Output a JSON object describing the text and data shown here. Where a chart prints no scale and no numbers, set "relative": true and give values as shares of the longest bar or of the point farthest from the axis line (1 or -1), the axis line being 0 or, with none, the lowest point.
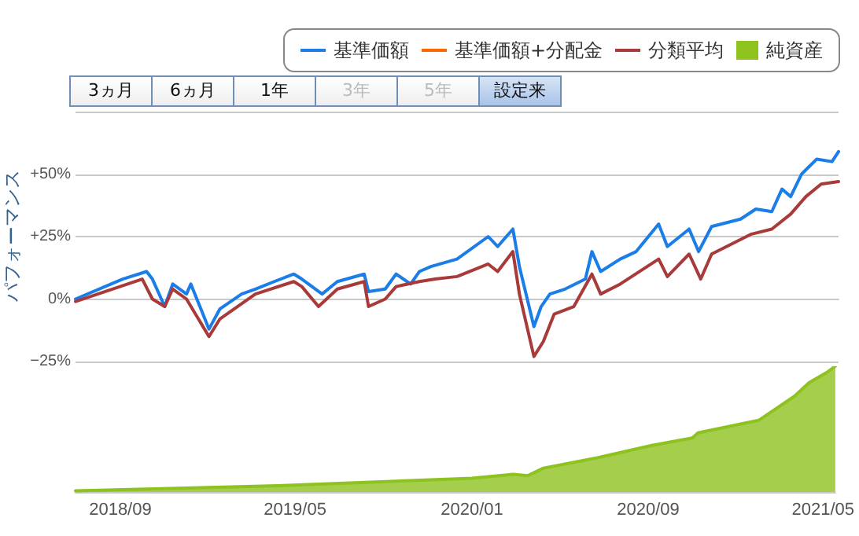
{
  "chart_data": [
    {
      "type": "line",
      "ylabel": "パフォーマンス",
      "legend": "top right",
      "grid": "y",
      "tick_labels": "y",
      "annotations": [
        "3ヵ月",
        "6ヵ月",
        "1年",
        "3年",
        "5年",
        "設定来"
      ],
      "xlim": [
        "2018-07-01",
        "2021-05-18"
      ],
      "ylim": [
        -25,
        75
      ],
      "yticks": [
        {
          "value": -25,
          "label": "−25%"
        },
        {
          "value": 0,
          "label": "0%"
        },
        {
          "value": 25,
          "label": "+25%"
        },
        {
          "value": 50,
          "label": "+50%"
        },
        {
          "value": 75,
          "label": null
        }
      ],
      "series": [
        {
          "name": "基準価額",
          "color": "#1a7de8",
          "x": [
            "2018-07-01",
            "2018-09-04",
            "2018-10-07",
            "2018-10-15",
            "2018-11-01",
            "2018-11-12",
            "2018-12-01",
            "2018-12-07",
            "2019-01-01",
            "2019-01-16",
            "2019-02-15",
            "2019-03-06",
            "2019-04-01",
            "2019-04-28",
            "2019-05-09",
            "2019-06-06",
            "2019-06-27",
            "2019-08-03",
            "2019-08-09",
            "2019-09-01",
            "2019-09-16",
            "2019-10-06",
            "2019-10-18",
            "2019-11-03",
            "2019-12-09",
            "2020-01-21",
            "2020-02-03",
            "2020-02-24",
            "2020-03-04",
            "2020-03-24",
            "2020-04-03",
            "2020-04-15",
            "2020-05-06",
            "2020-06-03",
            "2020-06-12",
            "2020-06-24",
            "2020-07-21",
            "2020-08-12",
            "2020-09-12",
            "2020-09-24",
            "2020-10-24",
            "2020-11-06",
            "2020-11-24",
            "2021-01-03",
            "2021-01-24",
            "2021-02-15",
            "2021-03-01",
            "2021-03-13",
            "2021-03-28",
            "2021-04-18",
            "2021-05-09",
            "2021-05-18"
          ],
          "values": [
            0,
            8,
            11,
            8,
            -3,
            6,
            2,
            6,
            -12,
            -4,
            2,
            4,
            7,
            10,
            8,
            2,
            7,
            10,
            3,
            4,
            10,
            6,
            11,
            13,
            16,
            25,
            21,
            28,
            13,
            -11,
            -3,
            2,
            4,
            8,
            19,
            11,
            16,
            19,
            30,
            21,
            28,
            19,
            29,
            32,
            36,
            35,
            44,
            41,
            50,
            56,
            55,
            59
          ]
        },
        {
          "name": "基準価額+分配金",
          "color": "#ff6600"
        },
        {
          "name": "分類平均",
          "color": "#a83a3a",
          "x": [
            "2018-07-01",
            "2018-10-01",
            "2018-10-15",
            "2018-11-01",
            "2018-11-12",
            "2018-12-01",
            "2019-01-01",
            "2019-01-16",
            "2019-03-06",
            "2019-04-28",
            "2019-05-09",
            "2019-06-01",
            "2019-06-27",
            "2019-08-03",
            "2019-08-09",
            "2019-09-01",
            "2019-09-16",
            "2019-10-18",
            "2019-11-09",
            "2019-12-09",
            "2020-01-21",
            "2020-02-03",
            "2020-02-24",
            "2020-03-04",
            "2020-03-24",
            "2020-04-06",
            "2020-04-21",
            "2020-05-18",
            "2020-06-12",
            "2020-06-24",
            "2020-07-21",
            "2020-09-12",
            "2020-09-24",
            "2020-10-24",
            "2020-11-09",
            "2020-11-24",
            "2021-01-18",
            "2021-02-15",
            "2021-03-13",
            "2021-04-03",
            "2021-04-24",
            "2021-05-18"
          ],
          "values": [
            -1,
            8,
            0,
            -3,
            4,
            0,
            -15,
            -8,
            2,
            7,
            5,
            -3,
            4,
            7,
            -3,
            0,
            5,
            7,
            8,
            9,
            14,
            11,
            19,
            2,
            -23,
            -17,
            -6,
            -3,
            10,
            2,
            6,
            16,
            9,
            18,
            8,
            18,
            26,
            28,
            34,
            41,
            46,
            47
          ]
        }
      ]
    },
    {
      "type": "area",
      "relative": true,
      "legend": "top right",
      "tick_labels": "x",
      "xlim": [
        "2018-07-01",
        "2021-05-18"
      ],
      "xticks": [
        {
          "value": "2018-09",
          "label": "2018/09"
        },
        {
          "value": "2019-05",
          "label": "2019/05"
        },
        {
          "value": "2020-01",
          "label": "2020/01"
        },
        {
          "value": "2020-09",
          "label": "2020/09"
        },
        {
          "value": "2021-05",
          "label": "2021/05"
        }
      ],
      "series": [
        {
          "name": "純資産",
          "color": "#8dc21f",
          "x": [
            "2018-07-01",
            "2019-04-07",
            "2020-01-01",
            "2020-02-27",
            "2020-03-18",
            "2020-04-09",
            "2020-06-21",
            "2020-09-06",
            "2020-11-01",
            "2020-11-09",
            "2021-02-01",
            "2021-03-22",
            "2021-04-12",
            "2021-05-06",
            "2021-05-18"
          ],
          "values": [
            0.01,
            0.05,
            0.11,
            0.14,
            0.13,
            0.19,
            0.27,
            0.37,
            0.43,
            0.47,
            0.57,
            0.76,
            0.87,
            0.95,
            1
          ]
        }
      ]
    }
  ]
}
